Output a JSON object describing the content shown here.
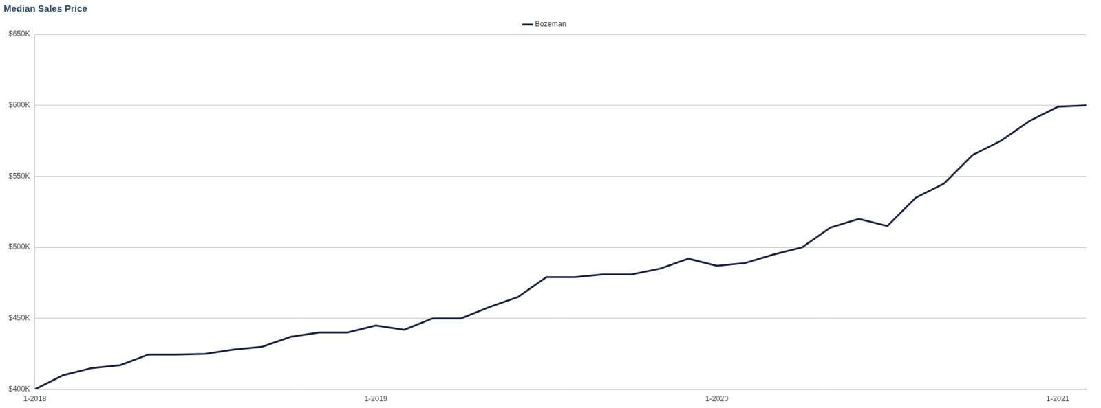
{
  "chart_data": {
    "type": "line",
    "title": "Median Sales Price",
    "categories": [
      "1-2018",
      null,
      null,
      null,
      null,
      null,
      null,
      null,
      null,
      null,
      null,
      null,
      "1-2019",
      null,
      null,
      null,
      null,
      null,
      null,
      null,
      null,
      null,
      null,
      null,
      "1-2020",
      null,
      null,
      null,
      null,
      null,
      null,
      null,
      null,
      null,
      null,
      null,
      "1-2021",
      null
    ],
    "series": [
      {
        "name": "Bozeman",
        "color": "#1c2541",
        "values": [
          400000,
          410000,
          415000,
          417000,
          424500,
          424500,
          425000,
          428000,
          430000,
          437000,
          440000,
          440000,
          445000,
          442000,
          450000,
          450000,
          458000,
          465000,
          479000,
          479000,
          481000,
          481000,
          485000,
          492000,
          487000,
          489000,
          495000,
          500000,
          514000,
          520000,
          515000,
          535000,
          545000,
          565000,
          575000,
          589000,
          599000,
          600000
        ]
      }
    ],
    "ylim": [
      400000,
      650000
    ],
    "yticks": [
      {
        "value": 400000,
        "label": "$400K"
      },
      {
        "value": 450000,
        "label": "$450K"
      },
      {
        "value": 500000,
        "label": "$500K"
      },
      {
        "value": 550000,
        "label": "$550K"
      },
      {
        "value": 600000,
        "label": "$600K"
      },
      {
        "value": 650000,
        "label": "$650K"
      }
    ],
    "grid": true,
    "legend": "top"
  }
}
